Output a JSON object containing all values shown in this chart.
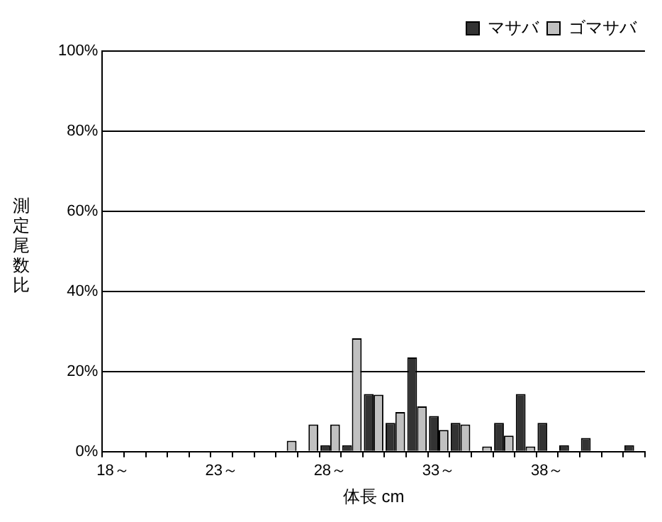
{
  "chart_data": {
    "type": "bar",
    "xlabel": "体長 cm",
    "ylabel": "測定尾数比",
    "categories": [
      "18～",
      null,
      null,
      null,
      null,
      "23～",
      null,
      null,
      null,
      null,
      "28～",
      null,
      null,
      null,
      null,
      "33～",
      null,
      null,
      null,
      null,
      "38～",
      null,
      null,
      null,
      null
    ],
    "series": [
      {
        "name": "マサバ",
        "color": "#333333",
        "values": [
          0,
          0,
          0,
          0,
          0,
          0,
          0,
          0,
          0,
          0.0,
          1.6,
          1.6,
          14.4,
          7.2,
          23.5,
          8.9,
          7.2,
          0,
          7.2,
          14.4,
          7.2,
          1.6,
          3.4,
          0,
          1.6
        ]
      },
      {
        "name": "ゴマサバ",
        "color": "#c0c0c0",
        "values": [
          0,
          0,
          0,
          0,
          0,
          0,
          0,
          0,
          2.7,
          6.8,
          6.8,
          28.3,
          14.2,
          9.9,
          11.3,
          5.4,
          6.8,
          1.3,
          4.0,
          1.3,
          0,
          0,
          0,
          0,
          0
        ]
      }
    ],
    "ylim": [
      0,
      100
    ],
    "yticks": [
      {
        "value": 0,
        "label": "0%"
      },
      {
        "value": 20,
        "label": "20%"
      },
      {
        "value": 40,
        "label": "40%"
      },
      {
        "value": 60,
        "label": "60%"
      },
      {
        "value": 80,
        "label": "80%"
      },
      {
        "value": 100,
        "label": "100%"
      }
    ],
    "grid": "y",
    "legend": "top right"
  }
}
